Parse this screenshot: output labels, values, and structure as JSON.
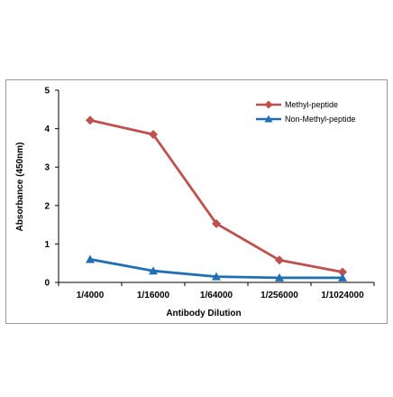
{
  "chart_data": {
    "type": "line",
    "title": "",
    "xlabel": "Antibody Dilution",
    "ylabel": "Absorbance (450nm)",
    "categories": [
      "1/4000",
      "1/16000",
      "1/64000",
      "1/256000",
      "1/1024000"
    ],
    "ylim": [
      0,
      5
    ],
    "yticks": [
      "0",
      "1",
      "2",
      "3",
      "4",
      "5"
    ],
    "grid": false,
    "legend_position": "top-right",
    "series": [
      {
        "name": "Methyl-peptide",
        "color": "#c0504d",
        "marker": "diamond",
        "values": [
          4.22,
          3.85,
          1.53,
          0.58,
          0.27
        ]
      },
      {
        "name": "Non-Methyl-peptide",
        "color": "#1f6fb5",
        "marker": "triangle",
        "values": [
          0.6,
          0.3,
          0.15,
          0.12,
          0.12
        ]
      }
    ]
  }
}
